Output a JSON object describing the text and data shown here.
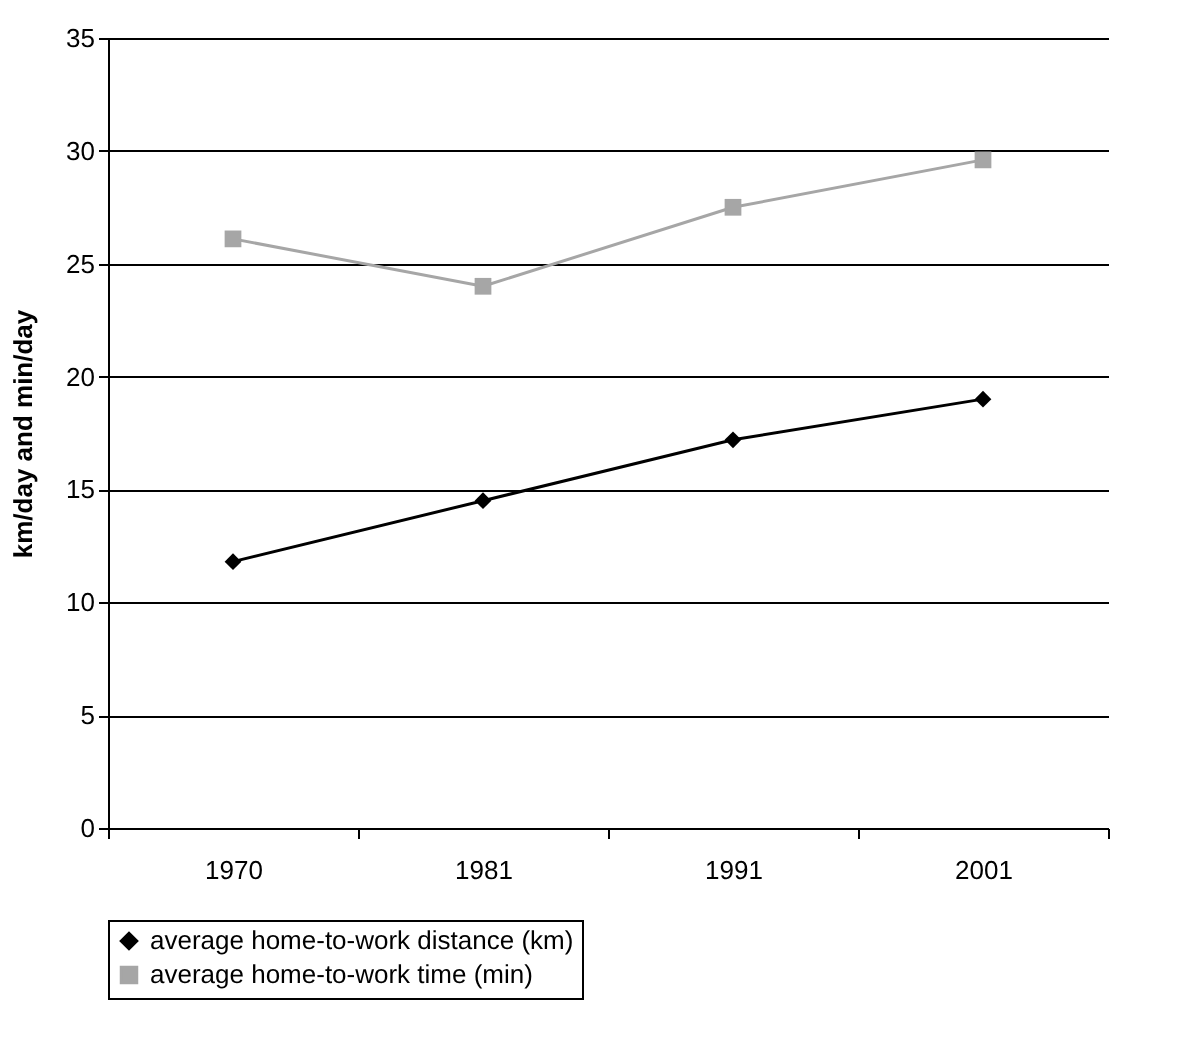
{
  "chart_data": {
    "type": "line",
    "ylabel": "km/day and min/day",
    "categories": [
      "1970",
      "1981",
      "1991",
      "2001"
    ],
    "series": [
      {
        "name": "average home-to-work distance (km)",
        "color": "#000000",
        "marker": "diamond",
        "values": [
          11.8,
          14.5,
          17.2,
          19.0
        ]
      },
      {
        "name": "average home-to-work time (min)",
        "color": "#a6a6a6",
        "marker": "square",
        "values": [
          26.1,
          24.0,
          27.5,
          29.6
        ]
      }
    ],
    "ylim": [
      0,
      35
    ],
    "yticks": [
      0,
      5,
      10,
      15,
      20,
      25,
      30,
      35
    ],
    "grid": "y",
    "legend": "bottom"
  }
}
